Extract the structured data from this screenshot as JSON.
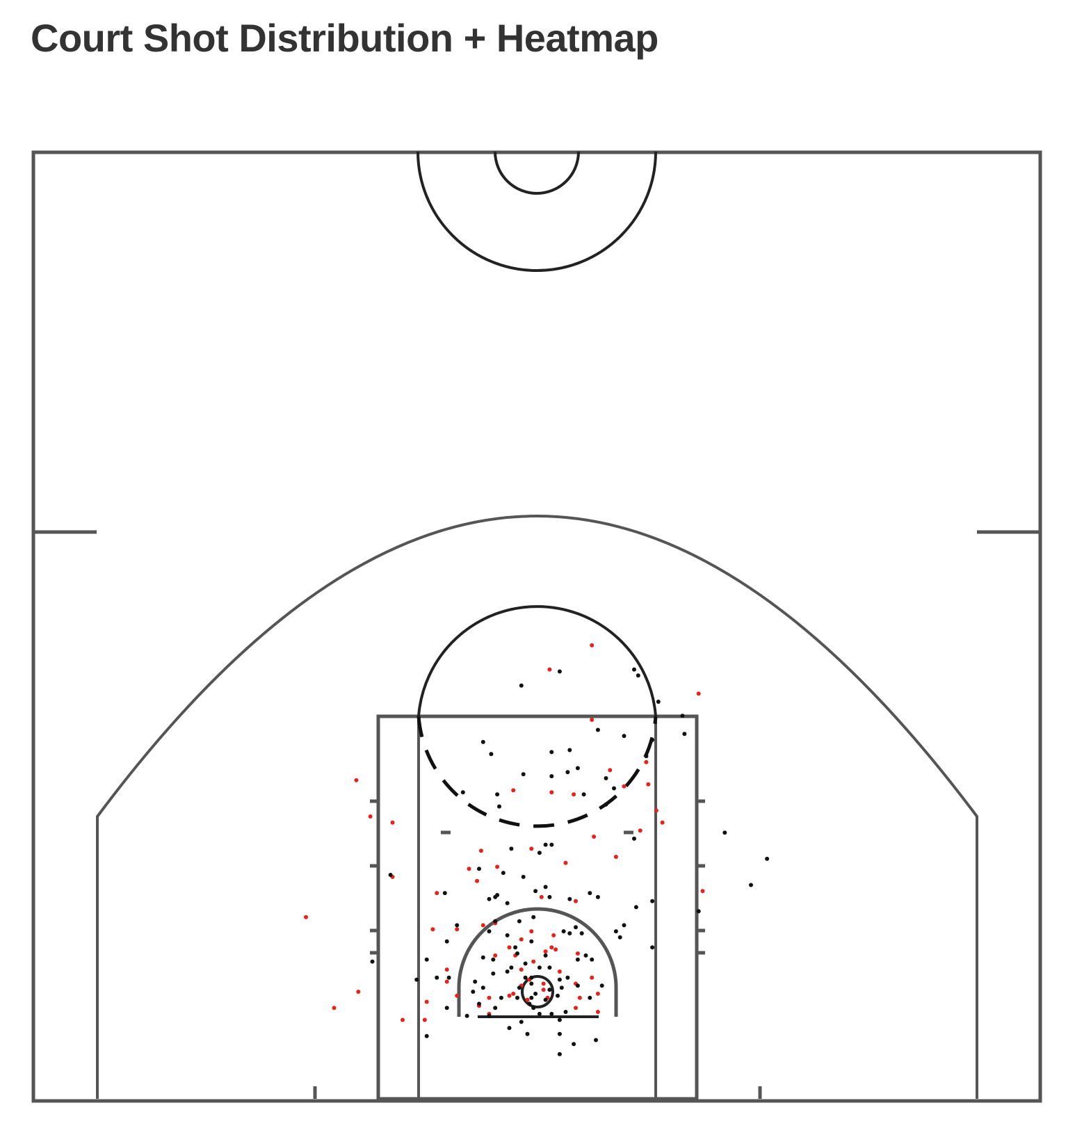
{
  "title": "Court Shot Distribution + Heatmap",
  "colors": {
    "made": "#e8221b",
    "missed": "#111111",
    "court_lines": "#555555"
  },
  "chart_data": {
    "type": "scatter",
    "title": "Court Shot Distribution + Heatmap",
    "xlabel": "",
    "ylabel": "",
    "xlim": [
      -25,
      25
    ],
    "ylim": [
      -4,
      43
    ],
    "grid": false,
    "series": [
      {
        "color": "#e8221b",
        "points": [
          [
            2.7,
            17.2
          ],
          [
            0.6,
            16.0
          ],
          [
            2.7,
            13.5
          ],
          [
            3.6,
            11.0
          ],
          [
            -1.2,
            10.0
          ],
          [
            0.7,
            9.9
          ],
          [
            1.8,
            9.8
          ],
          [
            4.3,
            10.2
          ],
          [
            5.5,
            10.3
          ],
          [
            5.9,
            9.0
          ],
          [
            5.1,
            8.0
          ],
          [
            2.8,
            7.7
          ],
          [
            3.9,
            6.7
          ],
          [
            -7.2,
            8.4
          ],
          [
            -2.8,
            7.0
          ],
          [
            -0.3,
            7.1
          ],
          [
            1.4,
            6.4
          ],
          [
            -2.0,
            6.2
          ],
          [
            -3.0,
            5.5
          ],
          [
            -3.4,
            6.1
          ],
          [
            -7.2,
            5.7
          ],
          [
            8.2,
            5.0
          ],
          [
            -5.0,
            4.9
          ],
          [
            0.2,
            4.7
          ],
          [
            1.9,
            4.5
          ],
          [
            -2.1,
            3.4
          ],
          [
            -11.5,
            3.7
          ],
          [
            -5.2,
            3.1
          ],
          [
            -4.0,
            3.1
          ],
          [
            -2.7,
            3.3
          ],
          [
            -0.8,
            2.6
          ],
          [
            -0.3,
            3.0
          ],
          [
            0.8,
            2.8
          ],
          [
            0.7,
            2.2
          ],
          [
            0.4,
            2.0
          ],
          [
            -0.2,
            1.5
          ],
          [
            -1.1,
            1.8
          ],
          [
            2.0,
            1.9
          ],
          [
            -0.8,
            1.1
          ],
          [
            -4.5,
            1.1
          ],
          [
            -0.4,
            0.6
          ],
          [
            1.9,
            0.4
          ],
          [
            0.3,
            0.4
          ],
          [
            -1.2,
            -0.1
          ],
          [
            3.0,
            -0.1
          ],
          [
            0.3,
            0.1
          ],
          [
            -2.9,
            -0.7
          ],
          [
            -4.5,
            0.5
          ],
          [
            -4.0,
            -0.2
          ],
          [
            -8.9,
            0.0
          ],
          [
            -2.4,
            -0.3
          ],
          [
            -1.4,
            -0.2
          ],
          [
            0.5,
            -0.3
          ],
          [
            2.1,
            -0.3
          ],
          [
            2.7,
            0.7
          ],
          [
            -5.5,
            -0.5
          ],
          [
            -2.4,
            -1.1
          ],
          [
            1.9,
            -0.8
          ],
          [
            3.0,
            -1.0
          ],
          [
            -5.6,
            -1.4
          ],
          [
            -0.5,
            -0.4
          ],
          [
            -0.8,
            0.3
          ],
          [
            1.1,
            1.0
          ],
          [
            -10.1,
            -0.8
          ],
          [
            -2.1,
            1.8
          ],
          [
            -1.4,
            2.2
          ],
          [
            0.9,
            2.1
          ],
          [
            -6.7,
            -1.4
          ],
          [
            -8.3,
            8.7
          ],
          [
            -9.0,
            10.5
          ],
          [
            5.4,
            11.4
          ],
          [
            8.0,
            14.8
          ],
          [
            6.2,
            8.4
          ]
        ]
      },
      {
        "color": "#111111",
        "points": [
          [
            1.1,
            15.9
          ],
          [
            -0.8,
            15.2
          ],
          [
            4.8,
            16.0
          ],
          [
            6.0,
            14.4
          ],
          [
            3.0,
            13.0
          ],
          [
            -2.7,
            12.4
          ],
          [
            0.7,
            11.9
          ],
          [
            1.6,
            12.0
          ],
          [
            4.3,
            12.7
          ],
          [
            5.7,
            12.5
          ],
          [
            -2.3,
            11.8
          ],
          [
            -0.7,
            10.8
          ],
          [
            0.7,
            10.7
          ],
          [
            1.5,
            10.9
          ],
          [
            3.8,
            10.1
          ],
          [
            5.4,
            11.7
          ],
          [
            -2.0,
            9.8
          ],
          [
            0.4,
            7.3
          ],
          [
            0.7,
            7.3
          ],
          [
            -1.3,
            7.1
          ],
          [
            4.8,
            7.6
          ],
          [
            0.1,
            6.9
          ],
          [
            -1.7,
            5.9
          ],
          [
            -2.9,
            6.1
          ],
          [
            0.4,
            5.2
          ],
          [
            -2.1,
            4.7
          ],
          [
            -1.5,
            4.4
          ],
          [
            -0.9,
            3.5
          ],
          [
            -0.2,
            3.7
          ],
          [
            -2.1,
            3.5
          ],
          [
            -2.4,
            4.6
          ],
          [
            3.0,
            4.7
          ],
          [
            1.6,
            4.6
          ],
          [
            -4.6,
            4.9
          ],
          [
            -2.4,
            3.0
          ],
          [
            -0.3,
            2.5
          ],
          [
            1.3,
            3.0
          ],
          [
            1.6,
            2.9
          ],
          [
            1.9,
            3.2
          ],
          [
            2.2,
            2.9
          ],
          [
            4.1,
            2.7
          ],
          [
            5.7,
            2.2
          ],
          [
            -1.1,
            2.2
          ],
          [
            -4.5,
            2.5
          ],
          [
            -5.5,
            1.6
          ],
          [
            -2.7,
            1.7
          ],
          [
            -2.2,
            1.6
          ],
          [
            -1.3,
            1.2
          ],
          [
            -0.6,
            1.4
          ],
          [
            0.6,
            1.2
          ],
          [
            2.0,
            1.6
          ],
          [
            2.7,
            1.6
          ],
          [
            -8.2,
            1.5
          ],
          [
            -2.2,
            0.9
          ],
          [
            -1.5,
            1.0
          ],
          [
            -0.3,
            0.7
          ],
          [
            0.1,
            1.2
          ],
          [
            1.1,
            0.6
          ],
          [
            1.2,
            0.2
          ],
          [
            2.0,
            0.3
          ],
          [
            -3.1,
            0.5
          ],
          [
            -4.4,
            0.7
          ],
          [
            -6.0,
            0.6
          ],
          [
            -5.0,
            0.7
          ],
          [
            -3.2,
            0.0
          ],
          [
            -2.7,
            0.2
          ],
          [
            -0.9,
            0.2
          ],
          [
            -0.3,
            0.4
          ],
          [
            -0.1,
            -0.1
          ],
          [
            0.6,
            0.1
          ],
          [
            1.5,
            0.7
          ],
          [
            3.2,
            0.3
          ],
          [
            -2.9,
            -0.6
          ],
          [
            -1.8,
            -0.3
          ],
          [
            -1.0,
            -0.3
          ],
          [
            -0.4,
            -0.6
          ],
          [
            0.4,
            -0.4
          ],
          [
            1.0,
            -0.2
          ],
          [
            2.6,
            -0.3
          ],
          [
            -3.5,
            -1.2
          ],
          [
            -4.5,
            -0.8
          ],
          [
            -2.1,
            -0.8
          ],
          [
            -0.2,
            -0.8
          ],
          [
            0.7,
            -1.1
          ],
          [
            1.4,
            -1.0
          ],
          [
            -0.8,
            -1.5
          ],
          [
            0.1,
            -1.1
          ],
          [
            -1.4,
            -1.8
          ],
          [
            -2.4,
            -1.2
          ],
          [
            1.1,
            -1.4
          ],
          [
            -0.5,
            -2.1
          ],
          [
            1.8,
            -2.6
          ],
          [
            1.1,
            -2.1
          ],
          [
            1.1,
            -3.1
          ],
          [
            -0.3,
            -0.3
          ],
          [
            -0.6,
            0.7
          ],
          [
            0.4,
            1.8
          ],
          [
            2.9,
            -2.4
          ],
          [
            -5.5,
            -2.2
          ],
          [
            -3.7,
            9.9
          ],
          [
            -7.3,
            5.8
          ],
          [
            5.7,
            4.5
          ],
          [
            7.2,
            13.7
          ],
          [
            5.0,
            15.7
          ],
          [
            7.3,
            12.8
          ],
          [
            9.3,
            7.9
          ],
          [
            8.0,
            4.0
          ],
          [
            2.6,
            4.9
          ],
          [
            4.9,
            4.2
          ],
          [
            11.4,
            6.6
          ],
          [
            10.6,
            5.3
          ],
          [
            0.6,
            4.7
          ],
          [
            -2.0,
            4.8
          ],
          [
            3.4,
            10.6
          ],
          [
            2.0,
            11.1
          ],
          [
            2.3,
            9.8
          ],
          [
            3.4,
            9.3
          ],
          [
            -1.9,
            9.2
          ],
          [
            -0.7,
            5.7
          ],
          [
            -0.1,
            5.0
          ],
          [
            2.4,
            1.8
          ],
          [
            3.9,
            3.0
          ],
          [
            4.3,
            3.3
          ],
          [
            -4.0,
            3.3
          ],
          [
            -1.5,
            2.8
          ],
          [
            -1.0,
            1.9
          ]
        ]
      }
    ]
  }
}
